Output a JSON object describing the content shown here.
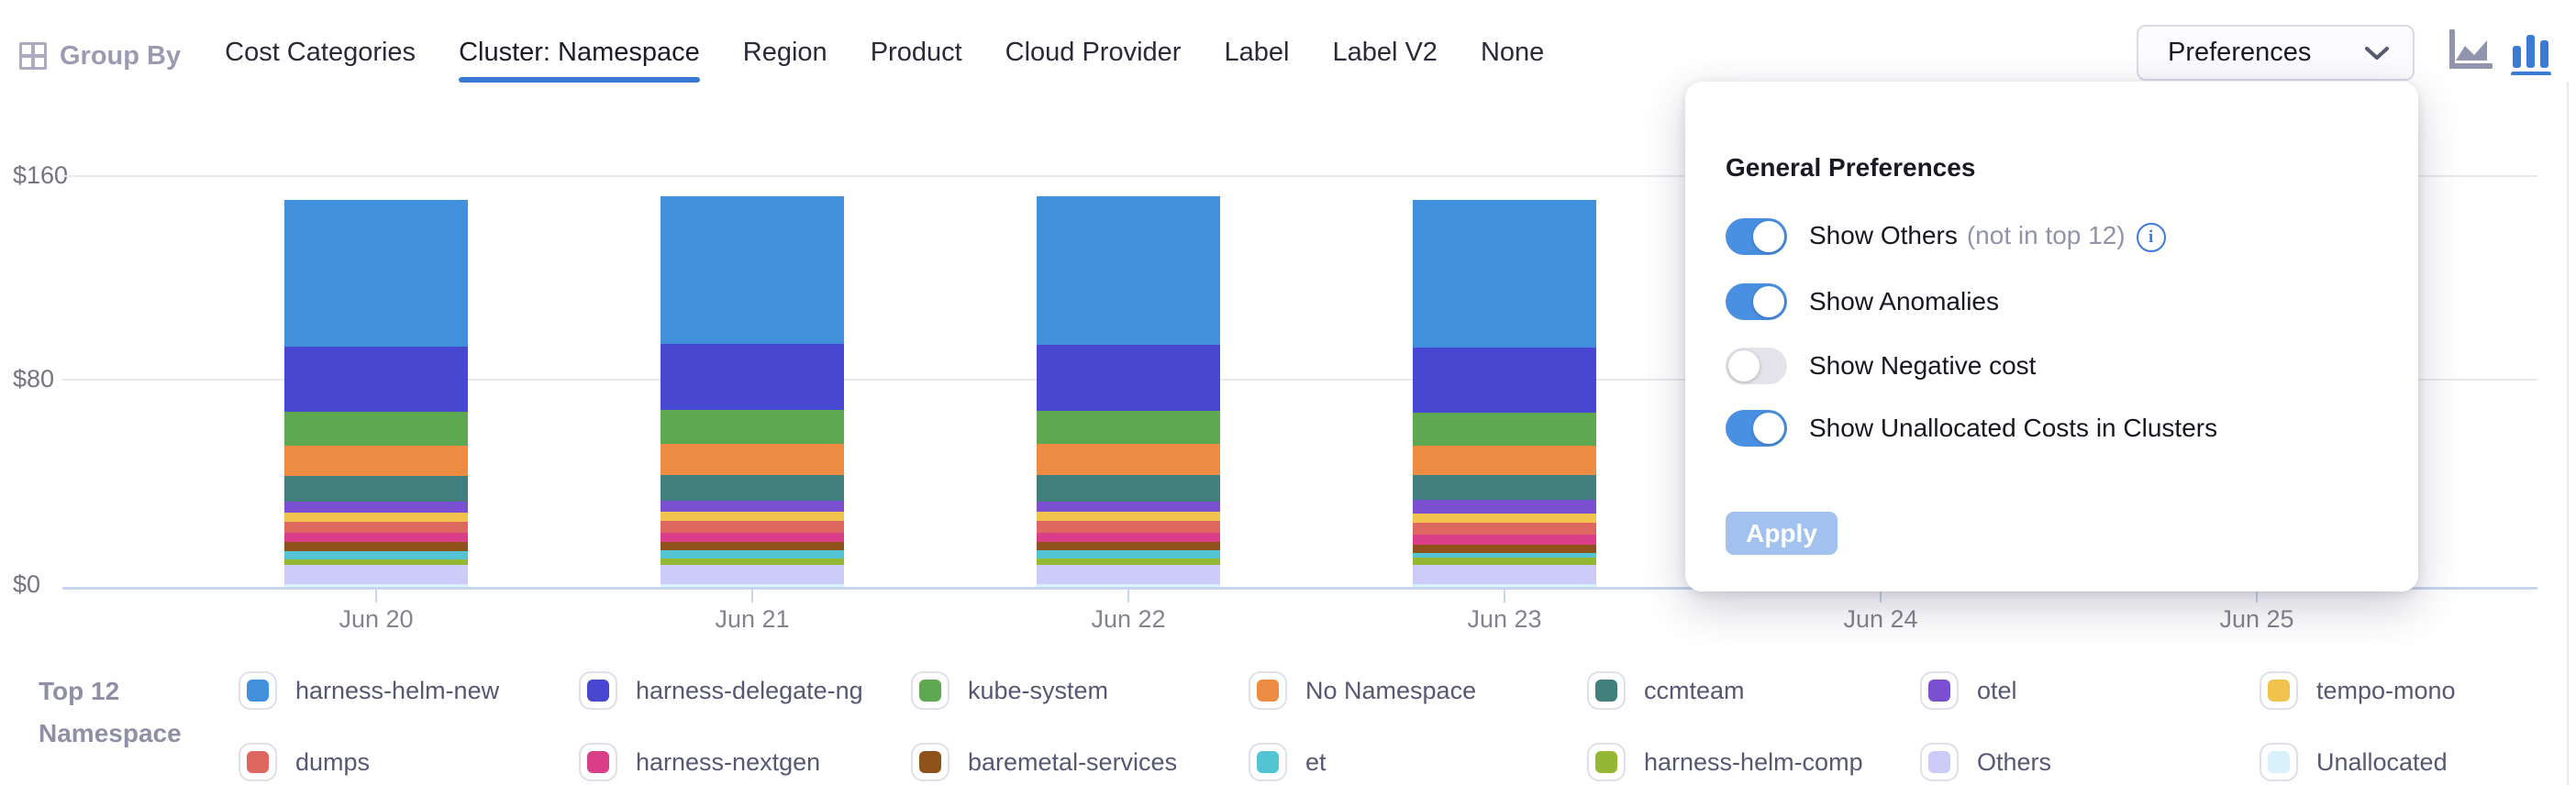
{
  "header": {
    "group_by_label": "Group By",
    "tabs": [
      {
        "label": "Cost Categories",
        "active": false
      },
      {
        "label": "Cluster: Namespace",
        "active": true
      },
      {
        "label": "Region",
        "active": false
      },
      {
        "label": "Product",
        "active": false
      },
      {
        "label": "Cloud Provider",
        "active": false
      },
      {
        "label": "Label",
        "active": false
      },
      {
        "label": "Label V2",
        "active": false
      },
      {
        "label": "None",
        "active": false
      }
    ],
    "preferences_button_label": "Preferences",
    "chart_type_icons": [
      "area-chart-icon",
      "bar-chart-icon"
    ],
    "active_chart_type": "bar"
  },
  "preferences_panel": {
    "title": "General Preferences",
    "toggles": [
      {
        "label": "Show Others",
        "suffix": "(not in top 12)",
        "info_icon": true,
        "on": true
      },
      {
        "label": "Show Anomalies",
        "suffix": "",
        "info_icon": false,
        "on": true
      },
      {
        "label": "Show Negative cost",
        "suffix": "",
        "info_icon": false,
        "on": false
      },
      {
        "label": "Show Unallocated Costs in Clusters",
        "suffix": "",
        "info_icon": false,
        "on": true
      }
    ],
    "apply_label": "Apply"
  },
  "chart_data": {
    "type": "bar",
    "stacked": true,
    "title": "",
    "xlabel": "",
    "ylabel": "",
    "currency": "USD",
    "ylim": [
      0,
      160
    ],
    "y_tick_labels": [
      "$0",
      "$80",
      "$160"
    ],
    "x": [
      "Jun 20",
      "Jun 21",
      "Jun 22",
      "Jun 23",
      "Jun 24",
      "Jun 25"
    ],
    "visible_bar_days": [
      "Jun 20",
      "Jun 21",
      "Jun 22",
      "Jun 23"
    ],
    "note": "Bars for Jun 24 and Jun 25 are hidden behind the open Preferences panel",
    "grid": true,
    "legend_position": "bottom",
    "stack_bottom_to_top": [
      "Unallocated",
      "Others",
      "harness-helm-comp",
      "et",
      "baremetal-services",
      "harness-nextgen",
      "dumps",
      "tempo-mono",
      "otel",
      "ccmteam",
      "No Namespace",
      "kube-system",
      "harness-delegate-ng",
      "harness-helm-new"
    ],
    "series": [
      {
        "name": "harness-helm-new",
        "color": "#4190db",
        "values": [
          56.9,
          57.4,
          57.5,
          57.2
        ]
      },
      {
        "name": "harness-delegate-ng",
        "color": "#4747d2",
        "values": [
          25.5,
          25.7,
          25.6,
          25.5
        ]
      },
      {
        "name": "kube-system",
        "color": "#5ea852",
        "values": [
          13.0,
          13.1,
          13.0,
          12.8
        ]
      },
      {
        "name": "No Namespace",
        "color": "#ee8b42",
        "values": [
          12.0,
          12.1,
          12.2,
          11.4
        ]
      },
      {
        "name": "ccmteam",
        "color": "#417f7c",
        "values": [
          10.0,
          10.1,
          10.1,
          9.6
        ]
      },
      {
        "name": "otel",
        "color": "#7a4fd0",
        "values": [
          4.0,
          4.1,
          4.0,
          5.2
        ]
      },
      {
        "name": "tempo-mono",
        "color": "#f2c34c",
        "values": [
          3.8,
          3.8,
          3.8,
          3.7
        ]
      },
      {
        "name": "dumps",
        "color": "#dd685f",
        "values": [
          4.3,
          4.4,
          4.4,
          4.5
        ]
      },
      {
        "name": "harness-nextgen",
        "color": "#db3e88",
        "values": [
          3.6,
          3.7,
          3.6,
          3.9
        ]
      },
      {
        "name": "baremetal-services",
        "color": "#8f521b",
        "values": [
          3.4,
          3.4,
          3.4,
          3.2
        ]
      },
      {
        "name": "et",
        "color": "#54c3d4",
        "values": [
          3.2,
          3.2,
          3.2,
          2.0
        ]
      },
      {
        "name": "harness-helm-comp",
        "color": "#94b834",
        "values": [
          2.2,
          2.2,
          2.2,
          2.9
        ]
      },
      {
        "name": "Others",
        "color": "#cdccf8",
        "values": [
          7.6,
          7.7,
          7.8,
          7.5
        ]
      },
      {
        "name": "Unallocated",
        "color": "#d8f1fa",
        "values": [
          0.9,
          1.0,
          0.9,
          0.9
        ]
      }
    ]
  },
  "legend": {
    "title_line1": "Top 12",
    "title_line2": "Namespace",
    "rows": [
      [
        "harness-helm-new",
        "harness-delegate-ng",
        "kube-system",
        "No Namespace",
        "ccmteam",
        "otel",
        "tempo-mono"
      ],
      [
        "dumps",
        "harness-nextgen",
        "baremetal-services",
        "et",
        "harness-helm-comp",
        "Others",
        "Unallocated"
      ]
    ]
  },
  "colors": {
    "accent_blue": "#3977d4",
    "toggle_on": "#4a90e2",
    "toggle_off": "#e3e3e9",
    "apply_disabled": "#a1c2ee",
    "gridline": "#e8e8ec",
    "axis_line": "#c9d4ee",
    "axis_text": "#84848e"
  }
}
